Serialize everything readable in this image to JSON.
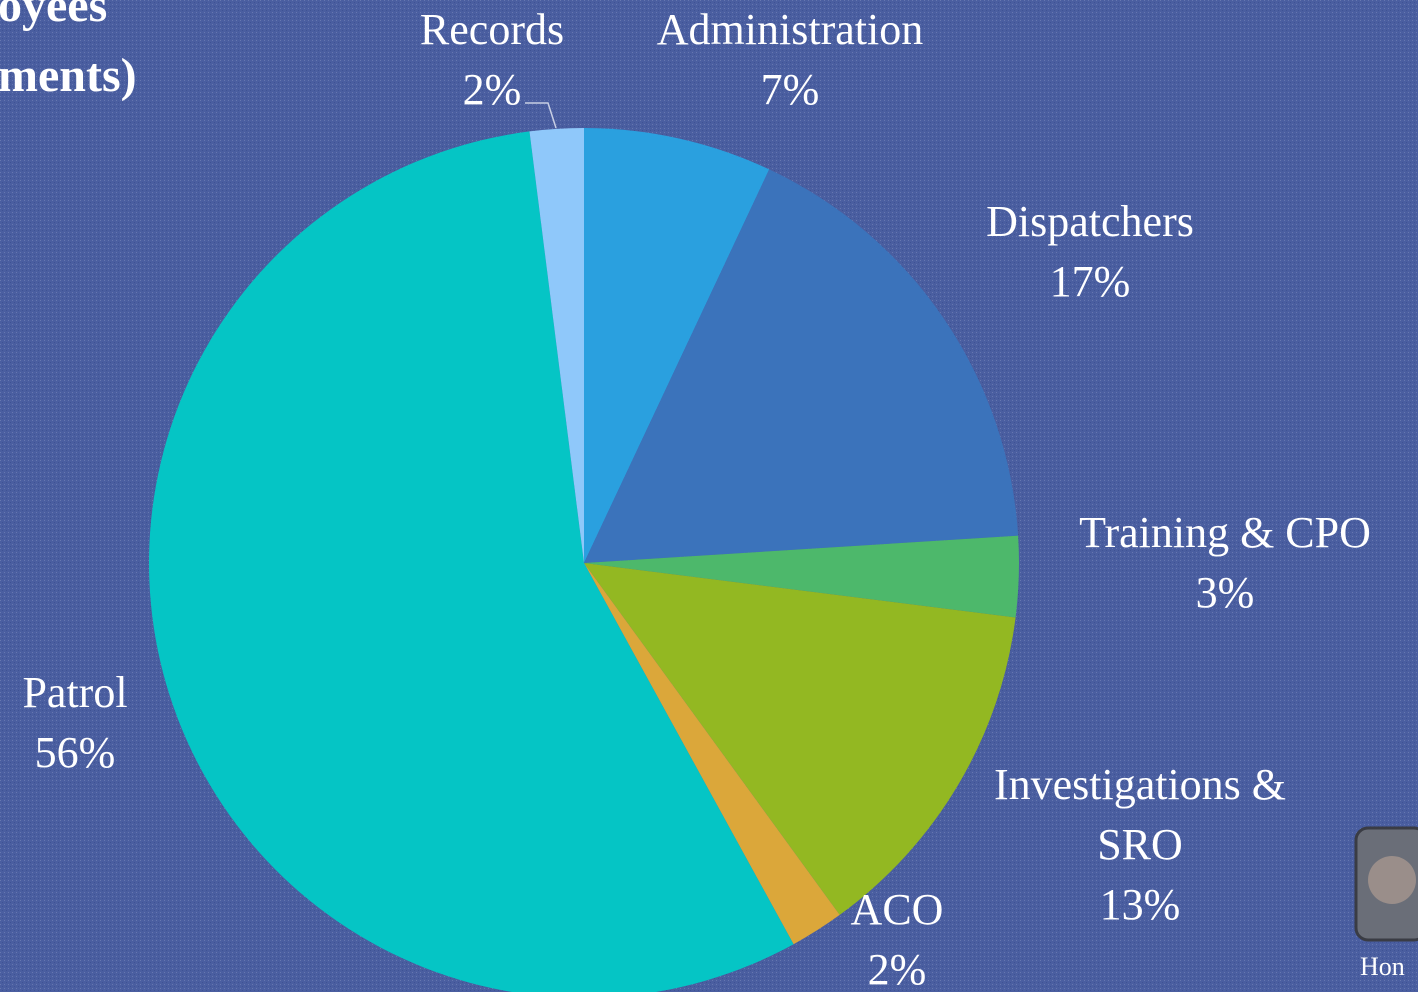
{
  "title_lines": [
    "oyees",
    "ments)"
  ],
  "footer_text": "Hon",
  "chart_data": {
    "type": "pie",
    "categories": [
      "Administration",
      "Dispatchers",
      "Training & CPO",
      "Investigations & SRO",
      "ACO",
      "Patrol",
      "Records"
    ],
    "values": [
      7,
      17,
      3,
      13,
      2,
      56,
      2
    ],
    "value_labels": [
      "7%",
      "17%",
      "3%",
      "13%",
      "2%",
      "56%",
      "2%"
    ],
    "colors": [
      "#2aa0df",
      "#3b73bb",
      "#4db86b",
      "#93b822",
      "#dba73a",
      "#05c5c5",
      "#8fc8fa"
    ]
  }
}
